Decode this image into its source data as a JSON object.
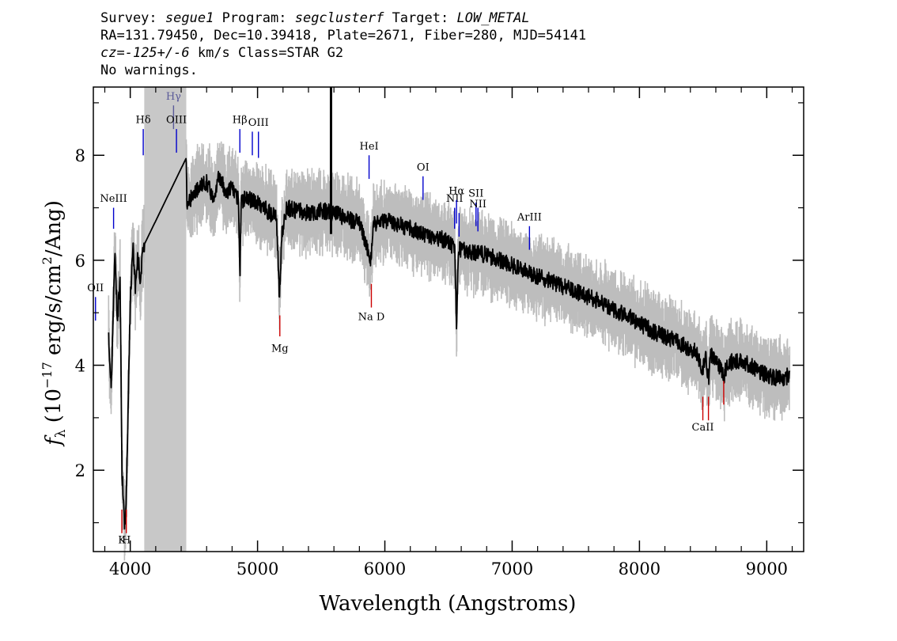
{
  "header": {
    "survey_label": "Survey:",
    "survey": "segue1",
    "program_label": "Program:",
    "program": "segclusterf",
    "target_label": "Target:",
    "target": "LOW_METAL",
    "line2": "RA=131.79450, Dec=10.39418, Plate=2671, Fiber=280, MJD=54141",
    "cz_prefix": "cz=",
    "cz_value": "-125+/-6",
    "cz_suffix": " km/s Class=STAR G2",
    "line4": "No warnings."
  },
  "chart_data": {
    "type": "line",
    "xlabel": "Wavelength (Angstroms)",
    "ylabel": "f_λ (10^-17 erg/s/cm^2/Ang)",
    "ylabel_parts": {
      "f": "f",
      "lambda": "λ",
      "unit_a": " (10",
      "exp1": "−17",
      "unit_b": " erg/s/cm",
      "exp2": "2",
      "unit_c": "/Ang)"
    },
    "xlim": [
      3710,
      9290
    ],
    "ylim": [
      0.45,
      9.3
    ],
    "xticks": [
      4000,
      5000,
      6000,
      7000,
      8000,
      9000
    ],
    "xtick_labels": [
      "4000",
      "5000",
      "6000",
      "7000",
      "8000",
      "9000"
    ],
    "yticks": [
      2,
      4,
      6,
      8
    ],
    "ytick_labels": [
      "2",
      "4",
      "6",
      "8"
    ],
    "masked_region": [
      4110,
      4440
    ],
    "spike": {
      "x": 5577,
      "y_from": 6.5,
      "y_to": 9.3
    },
    "series": [
      {
        "role": "flux",
        "color": "#000000",
        "points": [
          [
            3830,
            4.5
          ],
          [
            3850,
            3.6
          ],
          [
            3880,
            6.2
          ],
          [
            3900,
            4.8
          ],
          [
            3920,
            5.8
          ],
          [
            3935,
            2.0
          ],
          [
            3955,
            0.9
          ],
          [
            3968,
            1.3
          ],
          [
            3985,
            3.5
          ],
          [
            4000,
            5.2
          ],
          [
            4020,
            6.3
          ],
          [
            4040,
            5.5
          ],
          [
            4060,
            6.1
          ],
          [
            4080,
            5.6
          ],
          [
            4100,
            6.2
          ],
          [
            4110,
            6.3
          ],
          [
            4440,
            7.95
          ],
          [
            4445,
            7.1
          ],
          [
            4500,
            7.25
          ],
          [
            4550,
            7.4
          ],
          [
            4600,
            7.5
          ],
          [
            4650,
            7.2
          ],
          [
            4700,
            7.6
          ],
          [
            4750,
            7.3
          ],
          [
            4800,
            7.4
          ],
          [
            4830,
            7.2
          ],
          [
            4850,
            7.15
          ],
          [
            4861,
            5.6
          ],
          [
            4872,
            7.1
          ],
          [
            4900,
            7.2
          ],
          [
            4950,
            7.15
          ],
          [
            5000,
            7.1
          ],
          [
            5050,
            7.0
          ],
          [
            5100,
            6.9
          ],
          [
            5150,
            6.8
          ],
          [
            5172,
            5.3
          ],
          [
            5190,
            6.5
          ],
          [
            5230,
            7.0
          ],
          [
            5300,
            6.95
          ],
          [
            5400,
            6.9
          ],
          [
            5500,
            6.95
          ],
          [
            5600,
            6.9
          ],
          [
            5700,
            6.8
          ],
          [
            5800,
            6.7
          ],
          [
            5893,
            6.0
          ],
          [
            5910,
            6.7
          ],
          [
            6000,
            6.75
          ],
          [
            6100,
            6.7
          ],
          [
            6200,
            6.6
          ],
          [
            6300,
            6.5
          ],
          [
            6400,
            6.45
          ],
          [
            6500,
            6.35
          ],
          [
            6550,
            6.2
          ],
          [
            6563,
            4.6
          ],
          [
            6578,
            6.2
          ],
          [
            6600,
            6.2
          ],
          [
            6700,
            6.15
          ],
          [
            6800,
            6.1
          ],
          [
            6900,
            6.0
          ],
          [
            7000,
            5.9
          ],
          [
            7100,
            5.8
          ],
          [
            7200,
            5.7
          ],
          [
            7300,
            5.6
          ],
          [
            7400,
            5.5
          ],
          [
            7500,
            5.4
          ],
          [
            7600,
            5.3
          ],
          [
            7700,
            5.2
          ],
          [
            7800,
            5.05
          ],
          [
            7900,
            4.95
          ],
          [
            8000,
            4.8
          ],
          [
            8100,
            4.65
          ],
          [
            8200,
            4.55
          ],
          [
            8300,
            4.45
          ],
          [
            8400,
            4.3
          ],
          [
            8450,
            4.25
          ],
          [
            8498,
            3.9
          ],
          [
            8520,
            4.25
          ],
          [
            8542,
            3.7
          ],
          [
            8560,
            4.2
          ],
          [
            8600,
            4.1
          ],
          [
            8662,
            3.8
          ],
          [
            8700,
            4.05
          ],
          [
            8800,
            4.1
          ],
          [
            8900,
            3.95
          ],
          [
            9000,
            3.8
          ],
          [
            9100,
            3.75
          ],
          [
            9180,
            3.8
          ]
        ]
      }
    ],
    "line_markers": [
      {
        "label": "OII",
        "x": 3727,
        "color": "#0000cc",
        "y_top": 5.3,
        "y_bot": 4.85,
        "label_y": 5.35
      },
      {
        "label": "NeIII",
        "x": 3869,
        "color": "#0000cc",
        "y_top": 7.0,
        "y_bot": 6.6,
        "label_y": 7.05
      },
      {
        "label": "Hδ",
        "x": 4102,
        "color": "#0000cc",
        "y_top": 8.5,
        "y_bot": 8.0,
        "label_y": 8.55
      },
      {
        "label": "Hγ",
        "x": 4340,
        "color": "#5a5a99",
        "y_top": 8.95,
        "y_bot": 8.5,
        "label_y": 9.0
      },
      {
        "label": "OIII",
        "x": 4363,
        "color": "#0000cc",
        "y_top": 8.5,
        "y_bot": 8.05,
        "label_y": 8.55
      },
      {
        "label": "Hβ",
        "x": 4861,
        "color": "#0000cc",
        "y_top": 8.5,
        "y_bot": 8.05,
        "label_y": 8.55
      },
      {
        "label": "OIII",
        "x": 4959,
        "color": "#0000cc",
        "y_top": 8.45,
        "y_bot": 8.0,
        "label_y": -1
      },
      {
        "label": "OIII",
        "x": 5007,
        "color": "#0000cc",
        "y_top": 8.45,
        "y_bot": 7.95,
        "label_y": 8.5
      },
      {
        "label": "HeI",
        "x": 5876,
        "color": "#0000cc",
        "y_top": 8.0,
        "y_bot": 7.55,
        "label_y": 8.05
      },
      {
        "label": "OI",
        "x": 6300,
        "color": "#0000cc",
        "y_top": 7.6,
        "y_bot": 7.15,
        "label_y": 7.65
      },
      {
        "label": "NII",
        "x": 6548,
        "color": "#0000cc",
        "y_top": 7.0,
        "y_bot": 6.6,
        "label_y": 7.05
      },
      {
        "label": "Hα",
        "x": 6563,
        "color": "#0000cc",
        "y_top": 7.15,
        "y_bot": 6.7,
        "label_y": 7.2
      },
      {
        "label": "NII",
        "x": 6583,
        "color": "#0000cc",
        "y_top": 6.9,
        "y_bot": 6.45,
        "label_y": -1
      },
      {
        "label": "SII",
        "x": 6716,
        "color": "#0000cc",
        "y_top": 7.1,
        "y_bot": 6.65,
        "label_y": 7.15
      },
      {
        "label": "NII",
        "x": 6731,
        "color": "#0000cc",
        "y_top": 7.0,
        "y_bot": 6.55,
        "label_y": 6.95
      },
      {
        "label": "ArIII",
        "x": 7136,
        "color": "#0000cc",
        "y_top": 6.65,
        "y_bot": 6.2,
        "label_y": 6.7
      },
      {
        "label": "K",
        "x": 3934,
        "color": "#cc0000",
        "y_top": 1.25,
        "y_bot": 0.8,
        "label_y": 0.55
      },
      {
        "label": "H",
        "x": 3969,
        "color": "#cc0000",
        "y_top": 1.25,
        "y_bot": 0.8,
        "label_y": 0.55
      },
      {
        "label": "Mg",
        "x": 5175,
        "color": "#cc0000",
        "y_top": 4.95,
        "y_bot": 4.55,
        "label_y": 4.2
      },
      {
        "label": "Na D",
        "x": 5894,
        "color": "#cc0000",
        "y_top": 5.55,
        "y_bot": 5.1,
        "label_y": 4.8
      },
      {
        "label": "CaII",
        "x": 8498,
        "color": "#cc0000",
        "y_top": 3.4,
        "y_bot": 2.95,
        "label_y": 2.7
      },
      {
        "label": "CaII",
        "x": 8542,
        "color": "#cc0000",
        "y_top": 3.4,
        "y_bot": 2.95,
        "label_y": -1
      },
      {
        "label": "CaII",
        "x": 8662,
        "color": "#cc0000",
        "y_top": 3.7,
        "y_bot": 3.25,
        "label_y": -1
      }
    ]
  }
}
